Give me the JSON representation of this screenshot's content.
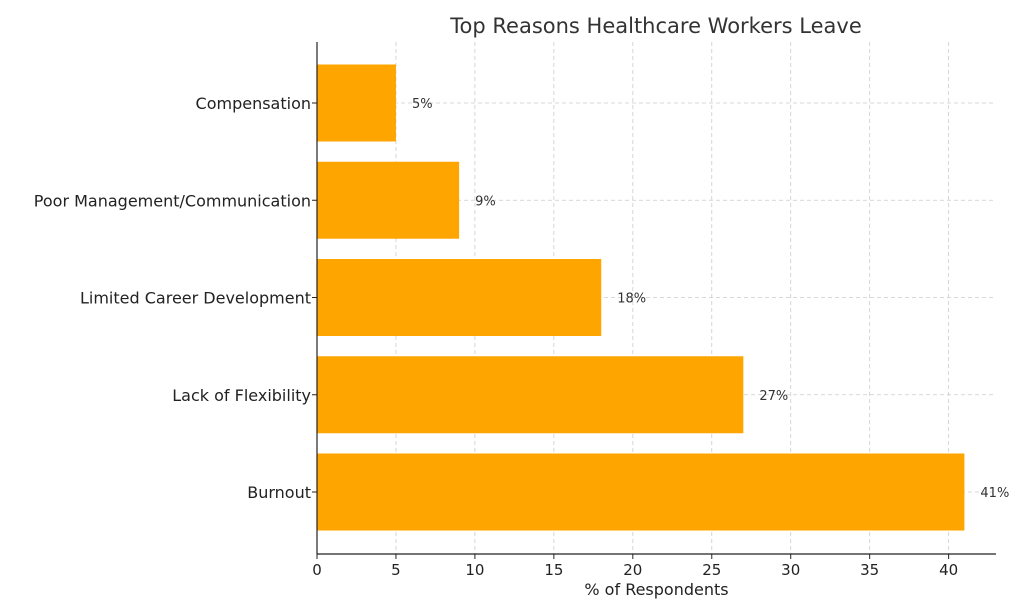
{
  "chart_data": {
    "type": "bar",
    "orientation": "horizontal",
    "title": "Top Reasons Healthcare Workers Leave",
    "xlabel": "% of Respondents",
    "ylabel": "",
    "categories": [
      "Burnout",
      "Lack of Flexibility",
      "Limited Career Development",
      "Poor Management/Communication",
      "Compensation"
    ],
    "values": [
      41,
      27,
      18,
      9,
      5
    ],
    "value_labels": [
      "41%",
      "27%",
      "18%",
      "9%",
      "5%"
    ],
    "xlim": [
      0,
      43
    ],
    "xticks": [
      0,
      5,
      10,
      15,
      20,
      25,
      30,
      35,
      40
    ],
    "grid": true,
    "bar_color": "#FFA500"
  }
}
